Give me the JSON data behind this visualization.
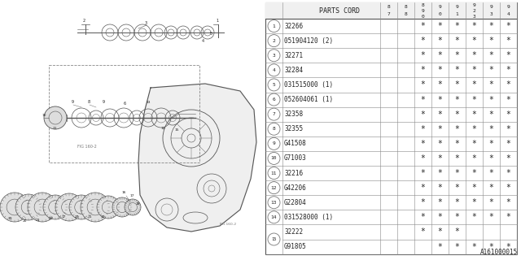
{
  "figure_id": "A161000015",
  "table_header": "PARTS CORD",
  "year_labels": [
    [
      "8",
      "7"
    ],
    [
      "8",
      "8"
    ],
    [
      "8",
      "9",
      "0"
    ],
    [
      "9",
      "0"
    ],
    [
      "9",
      "1"
    ],
    [
      "9",
      "2",
      "3"
    ],
    [
      "9",
      "3"
    ],
    [
      "9",
      "4"
    ]
  ],
  "rows": [
    {
      "num": 1,
      "part": "32266",
      "marks": [
        0,
        0,
        1,
        1,
        1,
        1,
        1,
        1
      ]
    },
    {
      "num": 2,
      "part": "051904120 (2)",
      "marks": [
        0,
        0,
        1,
        1,
        1,
        1,
        1,
        1
      ]
    },
    {
      "num": 3,
      "part": "32271",
      "marks": [
        0,
        0,
        1,
        1,
        1,
        1,
        1,
        1
      ]
    },
    {
      "num": 4,
      "part": "32284",
      "marks": [
        0,
        0,
        1,
        1,
        1,
        1,
        1,
        1
      ]
    },
    {
      "num": 5,
      "part": "031515000 (1)",
      "marks": [
        0,
        0,
        1,
        1,
        1,
        1,
        1,
        1
      ]
    },
    {
      "num": 6,
      "part": "052604061 (1)",
      "marks": [
        0,
        0,
        1,
        1,
        1,
        1,
        1,
        1
      ]
    },
    {
      "num": 7,
      "part": "32358",
      "marks": [
        0,
        0,
        1,
        1,
        1,
        1,
        1,
        1
      ]
    },
    {
      "num": 8,
      "part": "32355",
      "marks": [
        0,
        0,
        1,
        1,
        1,
        1,
        1,
        1
      ]
    },
    {
      "num": 9,
      "part": "G41508",
      "marks": [
        0,
        0,
        1,
        1,
        1,
        1,
        1,
        1
      ]
    },
    {
      "num": 10,
      "part": "G71003",
      "marks": [
        0,
        0,
        1,
        1,
        1,
        1,
        1,
        1
      ]
    },
    {
      "num": 11,
      "part": "32216",
      "marks": [
        0,
        0,
        1,
        1,
        1,
        1,
        1,
        1
      ]
    },
    {
      "num": 12,
      "part": "G42206",
      "marks": [
        0,
        0,
        1,
        1,
        1,
        1,
        1,
        1
      ]
    },
    {
      "num": 13,
      "part": "G22804",
      "marks": [
        0,
        0,
        1,
        1,
        1,
        1,
        1,
        1
      ]
    },
    {
      "num": 14,
      "part": "031528000 (1)",
      "marks": [
        0,
        0,
        1,
        1,
        1,
        1,
        1,
        1
      ]
    },
    {
      "num": 15,
      "part_a": "32222",
      "marks_a": [
        0,
        0,
        1,
        1,
        1,
        0,
        0,
        0
      ],
      "part_b": "G91805",
      "marks_b": [
        0,
        0,
        0,
        1,
        1,
        1,
        1,
        1
      ]
    }
  ],
  "bg_color": "#ffffff",
  "line_color": "#777777",
  "text_color": "#222222"
}
